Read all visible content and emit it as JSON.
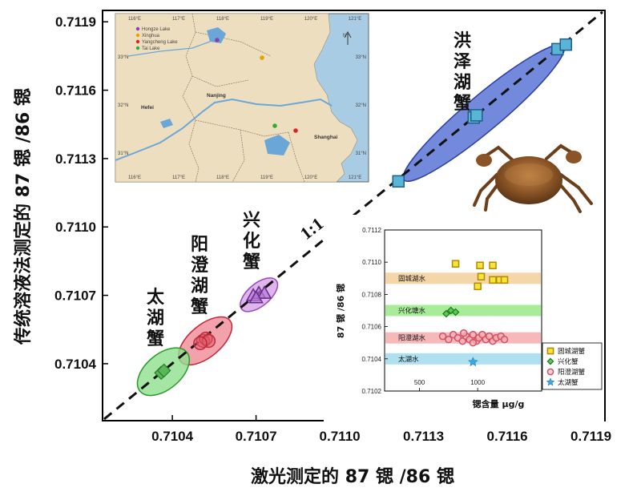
{
  "chart_data": [
    {
      "type": "scatter",
      "title": "",
      "xlabel": "激光测定的 87 锶 /86 锶",
      "ylabel": "传统溶液法测定的 87 锶 /86 锶",
      "xlim": [
        0.71015,
        0.71195
      ],
      "ylim": [
        0.71015,
        0.71195
      ],
      "x_ticks": [
        "0.7104",
        "0.7107",
        "0.7110",
        "0.7113",
        "0.7116",
        "0.7119"
      ],
      "y_ticks": [
        "0.7104",
        "0.7107",
        "0.7110",
        "0.7113",
        "0.7116",
        "0.7119"
      ],
      "reference_line": {
        "label": "1:1",
        "slope": 1
      },
      "grid": false,
      "series": [
        {
          "name": "洪泽湖蟹",
          "marker": "square",
          "color": "#5ab4d6",
          "ellipse_color": "#5a74d6",
          "points": [
            {
              "x": 0.71121,
              "y": 0.7112
            },
            {
              "x": 0.71148,
              "y": 0.71148
            },
            {
              "x": 0.71149,
              "y": 0.71149
            },
            {
              "x": 0.71178,
              "y": 0.71178
            },
            {
              "x": 0.71181,
              "y": 0.7118
            }
          ]
        },
        {
          "name": "兴化蟹",
          "marker": "triangle",
          "color": "#b47ad6",
          "ellipse_color": "#d7a3ea",
          "points": [
            {
              "x": 0.71069,
              "y": 0.7107
            },
            {
              "x": 0.71071,
              "y": 0.71071
            },
            {
              "x": 0.71073,
              "y": 0.71071
            },
            {
              "x": 0.7107,
              "y": 0.71069
            }
          ]
        },
        {
          "name": "阳澄湖蟹",
          "marker": "circle",
          "color": "#e05a6a",
          "ellipse_color": "#f08a96",
          "points": [
            {
              "x": 0.71051,
              "y": 0.7105
            },
            {
              "x": 0.71052,
              "y": 0.71051
            },
            {
              "x": 0.71053,
              "y": 0.7105
            },
            {
              "x": 0.7105,
              "y": 0.71049
            }
          ]
        },
        {
          "name": "太湖蟹",
          "marker": "diamond",
          "color": "#58b858",
          "ellipse_color": "#8ee08e",
          "points": [
            {
              "x": 0.71036,
              "y": 0.71036
            },
            {
              "x": 0.71037,
              "y": 0.71037
            }
          ]
        }
      ],
      "group_labels": [
        "洪泽湖蟹",
        "兴化蟹",
        "阳澄湖蟹",
        "太湖蟹"
      ]
    },
    {
      "type": "scatter",
      "title": "",
      "xlabel": "锶含量    μg/g",
      "ylabel": "87 锶 /86 锶",
      "ylim": [
        0.7102,
        0.7112
      ],
      "x_ticks": [
        "500",
        "1000"
      ],
      "y_ticks": [
        "0.7102",
        "0.7104",
        "0.7106",
        "0.7108",
        "0.7110",
        "0.7112"
      ],
      "bands": [
        {
          "label": "固城湖水",
          "color": "#f5d6a8",
          "y": 0.7109
        },
        {
          "label": "兴化塘水",
          "color": "#a8ec9a",
          "y": 0.7107
        },
        {
          "label": "阳澄湖水",
          "color": "#f6b8b8",
          "y": 0.71053
        },
        {
          "label": "太湖水",
          "color": "#aee0f0",
          "y": 0.7104
        }
      ],
      "legend": [
        "固城湖蟹",
        "兴化蟹",
        "阳澄湖蟹",
        "太湖蟹"
      ],
      "legend_position": "bottom-right",
      "series": [
        {
          "name": "固城湖蟹",
          "marker": "square",
          "color": "#f7e33a",
          "points": [
            {
              "x": 810,
              "y": 0.71099
            },
            {
              "x": 1020,
              "y": 0.71098
            },
            {
              "x": 1130,
              "y": 0.71098
            },
            {
              "x": 1030,
              "y": 0.71091
            },
            {
              "x": 1130,
              "y": 0.71089
            },
            {
              "x": 1190,
              "y": 0.71089
            },
            {
              "x": 1230,
              "y": 0.71089
            },
            {
              "x": 1000,
              "y": 0.71085
            }
          ]
        },
        {
          "name": "兴化蟹",
          "marker": "diamond",
          "color": "#5ac85a",
          "points": [
            {
              "x": 730,
              "y": 0.71068
            },
            {
              "x": 770,
              "y": 0.7107
            },
            {
              "x": 810,
              "y": 0.71069
            }
          ]
        },
        {
          "name": "阳澄湖蟹",
          "marker": "circle",
          "color": "#f7b0b0",
          "points": [
            {
              "x": 700,
              "y": 0.71054
            },
            {
              "x": 750,
              "y": 0.71052
            },
            {
              "x": 790,
              "y": 0.71055
            },
            {
              "x": 830,
              "y": 0.71053
            },
            {
              "x": 870,
              "y": 0.71051
            },
            {
              "x": 900,
              "y": 0.71054
            },
            {
              "x": 930,
              "y": 0.71052
            },
            {
              "x": 960,
              "y": 0.71055
            },
            {
              "x": 990,
              "y": 0.71051
            },
            {
              "x": 1010,
              "y": 0.71053
            },
            {
              "x": 1040,
              "y": 0.71055
            },
            {
              "x": 1070,
              "y": 0.71052
            },
            {
              "x": 1100,
              "y": 0.71054
            },
            {
              "x": 1130,
              "y": 0.71051
            },
            {
              "x": 1160,
              "y": 0.71053
            },
            {
              "x": 1200,
              "y": 0.71054
            },
            {
              "x": 1230,
              "y": 0.71052
            },
            {
              "x": 880,
              "y": 0.71056
            },
            {
              "x": 960,
              "y": 0.7105
            }
          ]
        },
        {
          "name": "太湖蟹",
          "marker": "star",
          "color": "#33aaee",
          "points": [
            {
              "x": 960,
              "y": 0.71038
            }
          ]
        }
      ]
    }
  ],
  "map": {
    "legend": [
      {
        "label": "Hongze Lake",
        "color": "#8a3fb0"
      },
      {
        "label": "Xinghua",
        "color": "#e6a100"
      },
      {
        "label": "Yangcheng Lake",
        "color": "#d22"
      },
      {
        "label": "Tai Lake",
        "color": "#3a3"
      }
    ],
    "top_lon": [
      "116°E",
      "117°E",
      "118°E",
      "119°E",
      "120°E",
      "121°E"
    ],
    "bottom_lon": [
      "116°E",
      "117°E",
      "118°E",
      "119°E",
      "120°E",
      "121°E"
    ],
    "lat": [
      "33°N",
      "32°N",
      "31°N"
    ],
    "cities": [
      "Hefei",
      "Nanjing",
      "Shanghai"
    ],
    "north": "N"
  },
  "crab_image": "crab-photo"
}
